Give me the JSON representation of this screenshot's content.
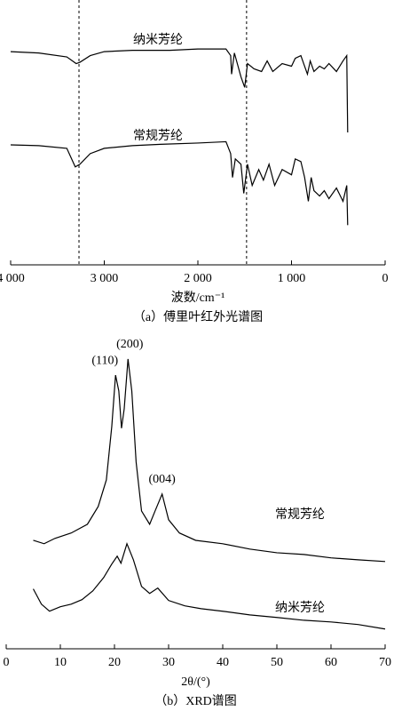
{
  "chart_data": [
    {
      "type": "line",
      "caption": "（a）傅里叶红外光谱图",
      "x_label": "波数/cm⁻¹",
      "xlim": [
        4000,
        0
      ],
      "ylim": [
        0,
        100
      ],
      "xticks": [
        {
          "value": 4000,
          "label": "4 000"
        },
        {
          "value": 3000,
          "label": "3 000"
        },
        {
          "value": 2000,
          "label": "2 000"
        },
        {
          "value": 1000,
          "label": "1 000"
        },
        0
      ],
      "vlines": [
        3270,
        1480
      ],
      "series": [
        {
          "name": "纳米芳纶",
          "color": "#000000",
          "x": [
            4000,
            3700,
            3400,
            3300,
            3260,
            3150,
            3000,
            2700,
            2300,
            2000,
            1700,
            1650,
            1640,
            1610,
            1540,
            1500,
            1470,
            1400,
            1320,
            1260,
            1200,
            1100,
            1000,
            960,
            900,
            870,
            830,
            800,
            760,
            700,
            650,
            600,
            520,
            450,
            410,
            400
          ],
          "values": [
            80.5,
            80,
            78.5,
            76,
            76.5,
            79,
            80.5,
            81,
            81,
            81.5,
            81.5,
            79,
            72,
            80,
            71,
            67,
            76,
            74,
            73,
            77,
            73,
            76,
            75,
            78,
            79,
            76,
            72,
            77,
            73,
            75,
            74,
            76,
            73,
            77,
            79,
            50
          ]
        },
        {
          "name": "常规芳纶",
          "color": "#000000",
          "x": [
            4000,
            3700,
            3400,
            3310,
            3260,
            3150,
            3000,
            2700,
            2400,
            2000,
            1700,
            1650,
            1630,
            1600,
            1540,
            1510,
            1470,
            1420,
            1350,
            1300,
            1240,
            1180,
            1100,
            1000,
            960,
            900,
            860,
            820,
            790,
            760,
            700,
            650,
            600,
            520,
            450,
            410,
            400
          ],
          "values": [
            45.3,
            45,
            44,
            37,
            38,
            42,
            44,
            45,
            45.5,
            46,
            46.5,
            42,
            33,
            40,
            38,
            27,
            38,
            30,
            36,
            32,
            38,
            30,
            36,
            34,
            40,
            39,
            33,
            24,
            33,
            28,
            26,
            28,
            25,
            29,
            24,
            30,
            15
          ]
        }
      ]
    },
    {
      "type": "line",
      "caption": "（b）XRD谱图",
      "x_label": "2θ/(°)",
      "xlim": [
        0,
        70
      ],
      "ylim": [
        -7,
        100
      ],
      "xticks": [
        0,
        10,
        20,
        30,
        40,
        50,
        60,
        70
      ],
      "annotations": [
        {
          "text": "(110)",
          "x": 20.2
        },
        {
          "text": "(200)",
          "x": 22.5
        },
        {
          "text": "(004)",
          "x": 28.8
        }
      ],
      "series": [
        {
          "name": "常规芳纶",
          "color": "#000000",
          "x": [
            5,
            7,
            9,
            12,
            15,
            17,
            18.5,
            19.5,
            20.2,
            20.8,
            21.3,
            21.8,
            22.5,
            23.2,
            24,
            25,
            26.5,
            27.5,
            28.8,
            30,
            32,
            35,
            40,
            45,
            50,
            55,
            60,
            65,
            70
          ],
          "values": [
            31.4,
            30.2,
            32.1,
            34,
            37.1,
            43.4,
            52.8,
            71.7,
            89.9,
            84.3,
            71.1,
            78,
            95.6,
            84.3,
            59.1,
            41.8,
            37.1,
            41.8,
            47.8,
            38.7,
            34,
            31.4,
            30.2,
            28.3,
            27,
            26.4,
            25.2,
            24.5,
            23.9
          ]
        },
        {
          "name": "纳米芳纶",
          "color": "#000000",
          "x": [
            5,
            6.5,
            8,
            10,
            12,
            14,
            16,
            18,
            19.5,
            20.5,
            21.2,
            22.3,
            23.5,
            25,
            26.5,
            28,
            30,
            33,
            36,
            40,
            45,
            50,
            55,
            60,
            65,
            70
          ],
          "values": [
            14.2,
            8.8,
            6.3,
            7.9,
            8.8,
            10.4,
            13.5,
            18.2,
            23,
            25.8,
            23.3,
            30.2,
            24.5,
            15.1,
            12.6,
            14.5,
            10.1,
            8.2,
            7.2,
            6.3,
            5,
            4.1,
            3.1,
            2.5,
            1.6,
            0
          ]
        }
      ]
    }
  ]
}
